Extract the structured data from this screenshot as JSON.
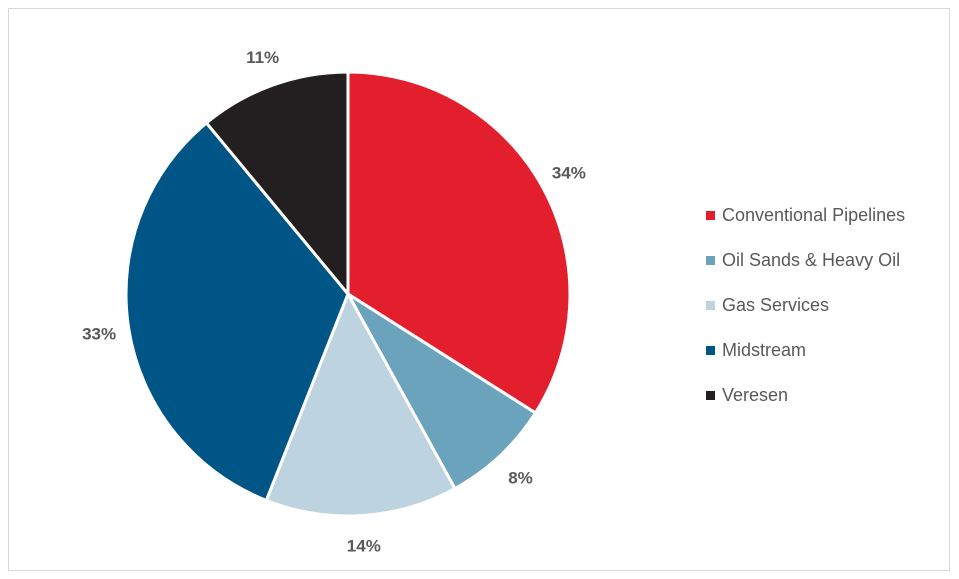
{
  "chart_data": {
    "type": "pie",
    "categories": [
      "Conventional Pipelines",
      "Oil Sands & Heavy Oil",
      "Gas Services",
      "Midstream",
      "Veresen"
    ],
    "values": [
      34,
      8,
      14,
      33,
      11
    ],
    "data_labels": [
      "34%",
      "8%",
      "14%",
      "33%",
      "11%"
    ],
    "colors": [
      "#e31e2d",
      "#6ba3bc",
      "#bdd3df",
      "#005587",
      "#231f20"
    ],
    "legend": "right"
  }
}
